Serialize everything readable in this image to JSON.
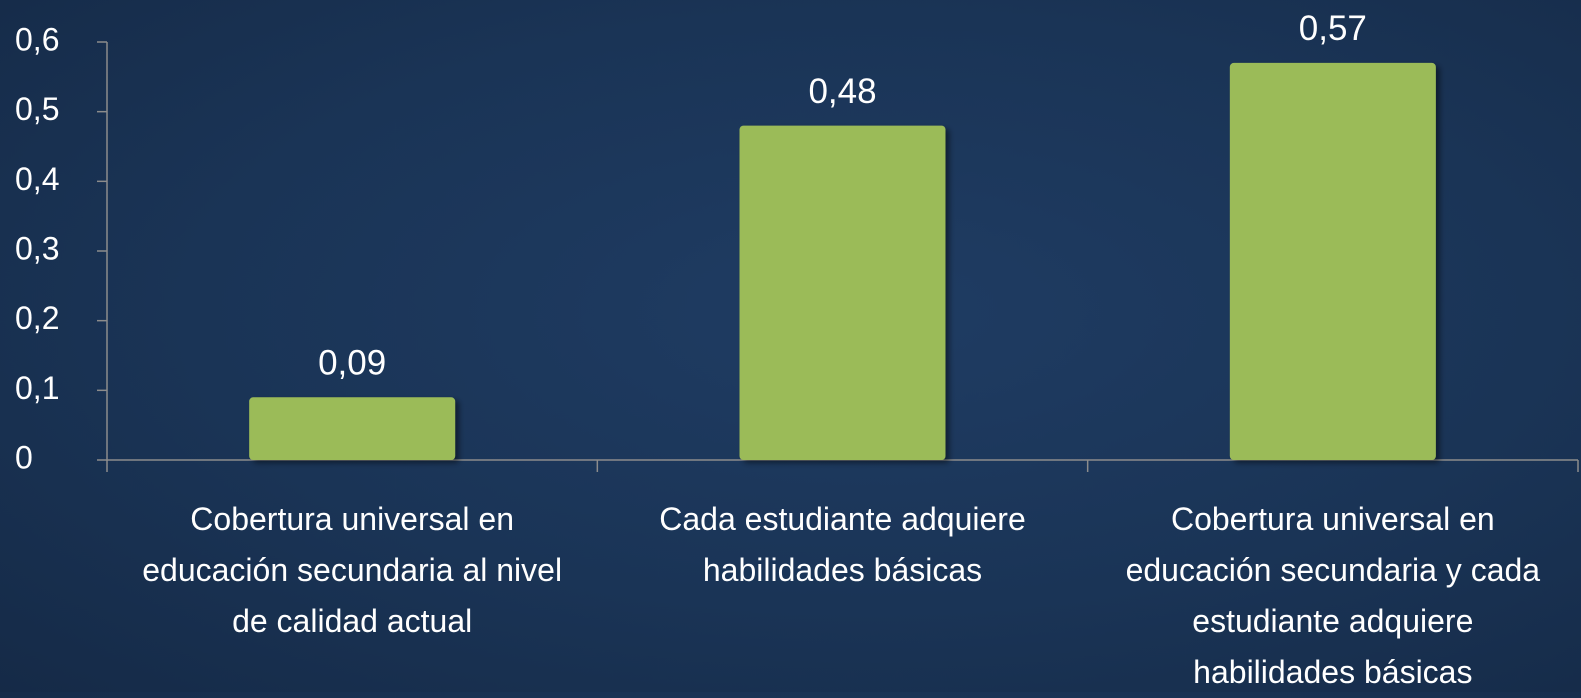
{
  "chart_data": {
    "type": "bar",
    "categories": [
      "Cobertura universal en educación secundaria al nivel de calidad actual",
      "Cada estudiante adquiere habilidades básicas",
      "Cobertura universal en educación secundaria y cada estudiante adquiere habilidades básicas"
    ],
    "values": [
      0.09,
      0.48,
      0.57
    ],
    "value_labels": [
      "0,09",
      "0,48",
      "0,57"
    ],
    "color": "#9bbb59",
    "ylim": [
      0,
      0.6
    ],
    "yticks": [
      0,
      {
        "value": 0.1,
        "label": "0,1"
      },
      {
        "value": 0.2,
        "label": "0,2"
      },
      {
        "value": 0.3,
        "label": "0,3"
      },
      {
        "value": 0.4,
        "label": "0,4"
      },
      {
        "value": 0.5,
        "label": "0,5"
      },
      {
        "value": 0.6,
        "label": "0,6"
      }
    ],
    "grid": false
  }
}
